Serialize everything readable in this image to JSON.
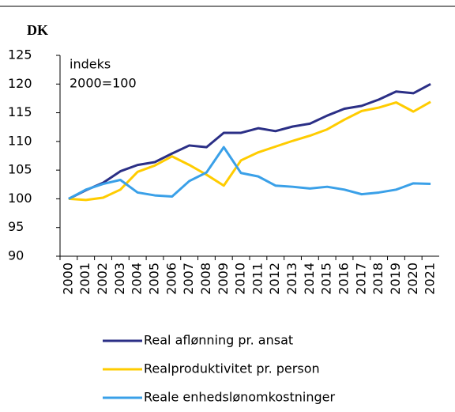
{
  "chart_data": {
    "type": "line",
    "y_unit_label": "DK",
    "annotation": [
      "indeks",
      "2000=100"
    ],
    "x": [
      "2000",
      "2001",
      "2002",
      "2003",
      "2004",
      "2005",
      "2006",
      "2007",
      "2008",
      "2009",
      "2010",
      "2011",
      "2012",
      "2013",
      "2014",
      "2015",
      "2016",
      "2017",
      "2018",
      "2019",
      "2020",
      "2021"
    ],
    "series": [
      {
        "name": "Real aflønning pr. ansat",
        "color": "#2b2f86",
        "values": [
          100,
          101.5,
          102.8,
          104.8,
          105.9,
          106.4,
          107.9,
          109.3,
          109.0,
          111.5,
          111.5,
          112.3,
          111.8,
          112.6,
          113.1,
          114.5,
          115.7,
          116.2,
          117.3,
          118.7,
          118.4,
          120.0
        ]
      },
      {
        "name": "Realproduktivitet pr. person",
        "color": "#ffcc00",
        "values": [
          100,
          99.8,
          100.2,
          101.6,
          104.7,
          105.8,
          107.4,
          105.9,
          104.2,
          102.3,
          106.7,
          108.1,
          109.1,
          110.1,
          111.0,
          112.1,
          113.8,
          115.3,
          115.9,
          116.8,
          115.2,
          116.9
        ]
      },
      {
        "name": "Reale enhedslønomkostninger",
        "color": "#3aa0e8",
        "values": [
          100,
          101.6,
          102.6,
          103.3,
          101.1,
          100.6,
          100.4,
          103.1,
          104.6,
          109.0,
          104.5,
          103.9,
          102.3,
          102.1,
          101.8,
          102.1,
          101.6,
          100.8,
          101.1,
          101.6,
          102.7,
          102.6
        ]
      }
    ],
    "ylim": [
      90,
      125
    ],
    "yticks": [
      90,
      95,
      100,
      105,
      110,
      115,
      120,
      125
    ]
  }
}
